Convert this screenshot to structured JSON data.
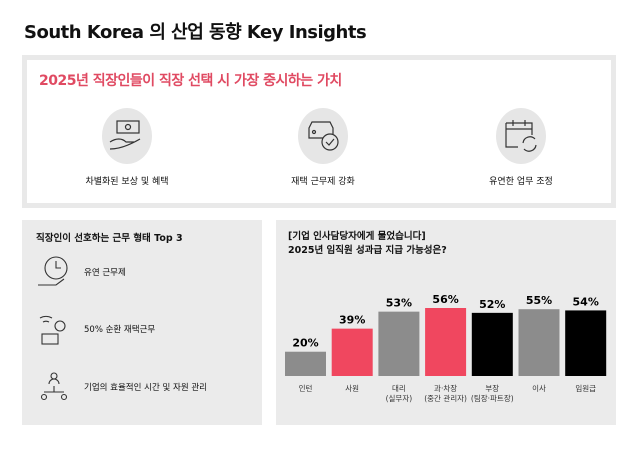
{
  "title": "South Korea 의 산업 동향 Key Insights",
  "values_panel": {
    "heading": "2025년 직장인들이 직장 선택 시 가장 중시하는 가치",
    "items": [
      {
        "label": "차별화된 보상 및 혜택",
        "icon": "money-hand-icon"
      },
      {
        "label": "재택 근무제 강화",
        "icon": "car-check-icon"
      },
      {
        "label": "유연한 업무 조정",
        "icon": "calendar-refresh-icon"
      }
    ]
  },
  "work_panel": {
    "heading": "직장인이 선호하는 근무 형태 Top 3",
    "items": [
      {
        "label": "유연 근무제",
        "icon": "clock-hand-icon"
      },
      {
        "label": "50% 순환 재택근무",
        "icon": "remote-laptop-icon"
      },
      {
        "label": "기업의 효율적인 시간 및 자원 관리",
        "icon": "people-network-icon"
      }
    ]
  },
  "chart_data": {
    "type": "bar",
    "title_line1": "[기업 인사담당자에게 물었습니다]",
    "title_line2": "2025년 임직원 성과급 지급 가능성은?",
    "categories": [
      "인턴",
      "사원",
      "대리\n(실무자)",
      "과·차장\n(중간 관리자)",
      "부장\n(팀장·파트장)",
      "이사",
      "임원급"
    ],
    "values": [
      20,
      39,
      53,
      56,
      52,
      55,
      54
    ],
    "labels": [
      "20%",
      "39%",
      "53%",
      "56%",
      "52%",
      "55%",
      "54%"
    ],
    "colors": [
      "#8c8c8c",
      "#f0475f",
      "#8c8c8c",
      "#f0475f",
      "#000000",
      "#8c8c8c",
      "#000000"
    ],
    "ylim": [
      0,
      56
    ]
  }
}
